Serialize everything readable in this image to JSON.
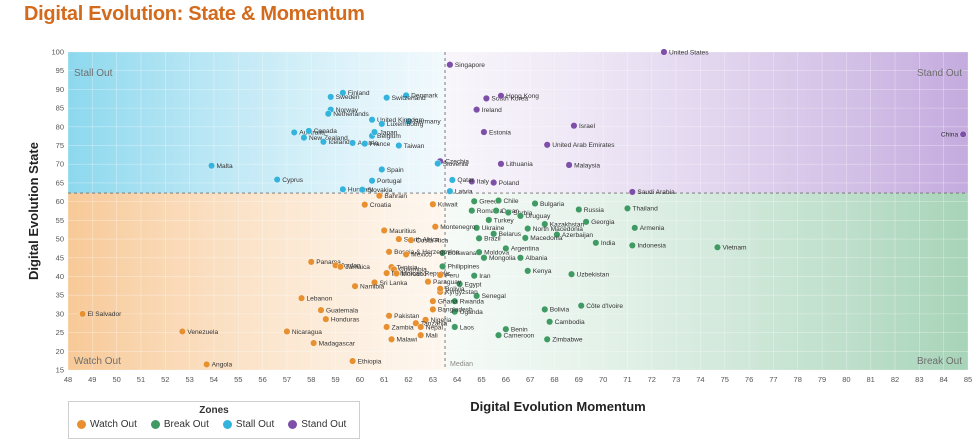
{
  "page_title": "Digital Evolution: State & Momentum",
  "colors": {
    "watch_out": "#e8902f",
    "break_out": "#3f9a63",
    "stall_out": "#34b4dc",
    "stand_out": "#7d4fa8"
  },
  "chart_data": {
    "type": "scatter",
    "title": "Digital Evolution: State & Momentum",
    "xlabel": "Digital Evolution Momentum",
    "ylabel": "Digital Evolution State",
    "xlim": [
      48,
      85
    ],
    "ylim": [
      15,
      100
    ],
    "x_ticks": [
      48,
      49,
      50,
      51,
      52,
      53,
      54,
      55,
      56,
      57,
      58,
      59,
      60,
      61,
      62,
      63,
      64,
      65,
      66,
      67,
      68,
      69,
      70,
      71,
      72,
      73,
      74,
      75,
      76,
      77,
      78,
      79,
      80,
      81,
      82,
      83,
      84,
      85
    ],
    "y_ticks": [
      15,
      20,
      25,
      30,
      35,
      40,
      45,
      50,
      55,
      60,
      65,
      70,
      75,
      80,
      85,
      90,
      95,
      100
    ],
    "x_divider": 63.5,
    "y_divider": 62.3,
    "median_label": "Median",
    "quadrant_labels": {
      "top_left": "Stall Out",
      "top_right": "Stand Out",
      "bottom_left": "Watch Out",
      "bottom_right": "Break Out"
    },
    "legend": {
      "title": "Zones",
      "position": "bottom-left",
      "items": [
        {
          "label": "Watch Out",
          "zone": "watch_out"
        },
        {
          "label": "Break Out",
          "zone": "break_out"
        },
        {
          "label": "Stall Out",
          "zone": "stall_out"
        },
        {
          "label": "Stand Out",
          "zone": "stand_out"
        }
      ]
    },
    "points": [
      {
        "name": "United States",
        "x": 72.5,
        "y": 100.0,
        "zone": "stand_out"
      },
      {
        "name": "Singapore",
        "x": 63.7,
        "y": 96.6,
        "zone": "stand_out"
      },
      {
        "name": "South Korea",
        "x": 65.2,
        "y": 87.6,
        "zone": "stand_out"
      },
      {
        "name": "Hong Kong",
        "x": 65.8,
        "y": 88.3,
        "zone": "stand_out"
      },
      {
        "name": "Ireland",
        "x": 64.8,
        "y": 84.6,
        "zone": "stand_out"
      },
      {
        "name": "Israel",
        "x": 68.8,
        "y": 80.3,
        "zone": "stand_out"
      },
      {
        "name": "Estonia",
        "x": 65.1,
        "y": 78.6,
        "zone": "stand_out"
      },
      {
        "name": "United Arab Emirates",
        "x": 67.7,
        "y": 75.2,
        "zone": "stand_out"
      },
      {
        "name": "China",
        "x": 84.8,
        "y": 78.0,
        "zone": "stand_out"
      },
      {
        "name": "Czechia",
        "x": 63.3,
        "y": 70.8,
        "zone": "stand_out"
      },
      {
        "name": "Lithuania",
        "x": 65.8,
        "y": 70.1,
        "zone": "stand_out"
      },
      {
        "name": "Malaysia",
        "x": 68.6,
        "y": 69.8,
        "zone": "stand_out"
      },
      {
        "name": "Italy",
        "x": 64.6,
        "y": 65.4,
        "zone": "stand_out"
      },
      {
        "name": "Poland",
        "x": 65.5,
        "y": 65.1,
        "zone": "stand_out"
      },
      {
        "name": "Saudi Arabia",
        "x": 71.2,
        "y": 62.6,
        "zone": "stand_out"
      },
      {
        "name": "Finland",
        "x": 59.3,
        "y": 89.1,
        "zone": "stall_out"
      },
      {
        "name": "Sweden",
        "x": 58.8,
        "y": 88.0,
        "zone": "stall_out"
      },
      {
        "name": "Denmark",
        "x": 61.9,
        "y": 88.4,
        "zone": "stall_out"
      },
      {
        "name": "Switzerland",
        "x": 61.1,
        "y": 87.8,
        "zone": "stall_out"
      },
      {
        "name": "Norway",
        "x": 58.8,
        "y": 84.6,
        "zone": "stall_out"
      },
      {
        "name": "Netherlands",
        "x": 58.7,
        "y": 83.5,
        "zone": "stall_out"
      },
      {
        "name": "Germany",
        "x": 62.0,
        "y": 81.5,
        "zone": "stall_out"
      },
      {
        "name": "United Kingdom",
        "x": 60.5,
        "y": 81.9,
        "zone": "stall_out"
      },
      {
        "name": "Luxembourg",
        "x": 60.9,
        "y": 80.8,
        "zone": "stall_out"
      },
      {
        "name": "Australia",
        "x": 57.3,
        "y": 78.5,
        "zone": "stall_out"
      },
      {
        "name": "Canada",
        "x": 57.9,
        "y": 78.9,
        "zone": "stall_out"
      },
      {
        "name": "New Zealand",
        "x": 57.7,
        "y": 77.1,
        "zone": "stall_out"
      },
      {
        "name": "Belgium",
        "x": 60.5,
        "y": 77.6,
        "zone": "stall_out"
      },
      {
        "name": "Japan",
        "x": 60.6,
        "y": 78.6,
        "zone": "stall_out"
      },
      {
        "name": "Iceland",
        "x": 58.5,
        "y": 76.0,
        "zone": "stall_out"
      },
      {
        "name": "Austria",
        "x": 59.7,
        "y": 75.7,
        "zone": "stall_out"
      },
      {
        "name": "France",
        "x": 60.2,
        "y": 75.5,
        "zone": "stall_out"
      },
      {
        "name": "Taiwan",
        "x": 61.6,
        "y": 75.0,
        "zone": "stall_out"
      },
      {
        "name": "Slovenia",
        "x": 63.2,
        "y": 70.2,
        "zone": "stall_out"
      },
      {
        "name": "Malta",
        "x": 53.9,
        "y": 69.6,
        "zone": "stall_out"
      },
      {
        "name": "Spain",
        "x": 60.9,
        "y": 68.6,
        "zone": "stall_out"
      },
      {
        "name": "Cyprus",
        "x": 56.6,
        "y": 65.9,
        "zone": "stall_out"
      },
      {
        "name": "Portugal",
        "x": 60.5,
        "y": 65.6,
        "zone": "stall_out"
      },
      {
        "name": "Hungary",
        "x": 59.3,
        "y": 63.3,
        "zone": "stall_out"
      },
      {
        "name": "Slovakia",
        "x": 60.1,
        "y": 63.2,
        "zone": "stall_out"
      },
      {
        "name": "Qatar",
        "x": 63.8,
        "y": 65.8,
        "zone": "stall_out"
      },
      {
        "name": "Latvia",
        "x": 63.7,
        "y": 62.8,
        "zone": "stall_out"
      },
      {
        "name": "Bulgaria",
        "x": 67.2,
        "y": 59.5,
        "zone": "break_out"
      },
      {
        "name": "Greece",
        "x": 64.7,
        "y": 60.1,
        "zone": "break_out"
      },
      {
        "name": "Chile",
        "x": 65.7,
        "y": 60.3,
        "zone": "break_out"
      },
      {
        "name": "Romania",
        "x": 64.6,
        "y": 57.6,
        "zone": "break_out"
      },
      {
        "name": "Oman",
        "x": 65.6,
        "y": 57.6,
        "zone": "break_out"
      },
      {
        "name": "Serbia",
        "x": 66.1,
        "y": 57.1,
        "zone": "break_out"
      },
      {
        "name": "Russia",
        "x": 69.0,
        "y": 57.9,
        "zone": "break_out"
      },
      {
        "name": "Thailand",
        "x": 71.0,
        "y": 58.2,
        "zone": "break_out"
      },
      {
        "name": "Uruguay",
        "x": 66.6,
        "y": 56.2,
        "zone": "break_out"
      },
      {
        "name": "Turkey",
        "x": 65.3,
        "y": 55.1,
        "zone": "break_out"
      },
      {
        "name": "Georgia",
        "x": 69.3,
        "y": 54.6,
        "zone": "break_out"
      },
      {
        "name": "Kazakhstan",
        "x": 67.6,
        "y": 54.0,
        "zone": "break_out"
      },
      {
        "name": "North Macedonia",
        "x": 66.9,
        "y": 52.8,
        "zone": "break_out"
      },
      {
        "name": "Ukraine",
        "x": 64.8,
        "y": 53.0,
        "zone": "break_out"
      },
      {
        "name": "Armenia",
        "x": 71.3,
        "y": 53.0,
        "zone": "break_out"
      },
      {
        "name": "Azerbaijan",
        "x": 68.1,
        "y": 51.2,
        "zone": "break_out"
      },
      {
        "name": "Belarus",
        "x": 65.5,
        "y": 51.4,
        "zone": "break_out"
      },
      {
        "name": "Macedonia",
        "x": 66.8,
        "y": 50.3,
        "zone": "break_out"
      },
      {
        "name": "Brazil",
        "x": 64.9,
        "y": 50.2,
        "zone": "break_out"
      },
      {
        "name": "India",
        "x": 69.7,
        "y": 49.0,
        "zone": "break_out"
      },
      {
        "name": "Indonesia",
        "x": 71.2,
        "y": 48.3,
        "zone": "break_out"
      },
      {
        "name": "Vietnam",
        "x": 74.7,
        "y": 47.8,
        "zone": "break_out"
      },
      {
        "name": "Botswana",
        "x": 63.4,
        "y": 46.3,
        "zone": "break_out"
      },
      {
        "name": "Moldova",
        "x": 64.9,
        "y": 46.5,
        "zone": "break_out"
      },
      {
        "name": "Argentina",
        "x": 66.0,
        "y": 47.5,
        "zone": "break_out"
      },
      {
        "name": "Mongolia",
        "x": 65.1,
        "y": 45.0,
        "zone": "break_out"
      },
      {
        "name": "Albania",
        "x": 66.6,
        "y": 45.0,
        "zone": "break_out"
      },
      {
        "name": "Philippines",
        "x": 63.4,
        "y": 42.7,
        "zone": "break_out"
      },
      {
        "name": "Kenya",
        "x": 66.9,
        "y": 41.5,
        "zone": "break_out"
      },
      {
        "name": "Iran",
        "x": 64.7,
        "y": 40.2,
        "zone": "break_out"
      },
      {
        "name": "Uzbekistan",
        "x": 68.7,
        "y": 40.6,
        "zone": "break_out"
      },
      {
        "name": "Egypt",
        "x": 64.1,
        "y": 38.0,
        "zone": "break_out"
      },
      {
        "name": "Senegal",
        "x": 64.8,
        "y": 34.8,
        "zone": "break_out"
      },
      {
        "name": "Rwanda",
        "x": 63.9,
        "y": 33.4,
        "zone": "break_out"
      },
      {
        "name": "Uganda",
        "x": 63.9,
        "y": 30.6,
        "zone": "break_out"
      },
      {
        "name": "Côte d'Ivoire",
        "x": 69.1,
        "y": 32.2,
        "zone": "break_out"
      },
      {
        "name": "Bolivia",
        "x": 67.6,
        "y": 31.2,
        "zone": "break_out"
      },
      {
        "name": "Cambodia",
        "x": 67.8,
        "y": 27.9,
        "zone": "break_out"
      },
      {
        "name": "Laos",
        "x": 63.9,
        "y": 26.5,
        "zone": "break_out"
      },
      {
        "name": "Benin",
        "x": 66.0,
        "y": 25.9,
        "zone": "break_out"
      },
      {
        "name": "Cameroon",
        "x": 65.7,
        "y": 24.3,
        "zone": "break_out"
      },
      {
        "name": "Zimbabwe",
        "x": 67.7,
        "y": 23.2,
        "zone": "break_out"
      },
      {
        "name": "Bahrain",
        "x": 60.8,
        "y": 61.6,
        "zone": "watch_out"
      },
      {
        "name": "Croatia",
        "x": 60.2,
        "y": 59.2,
        "zone": "watch_out"
      },
      {
        "name": "Kuwait",
        "x": 63.0,
        "y": 59.3,
        "zone": "watch_out"
      },
      {
        "name": "Montenegro",
        "x": 63.1,
        "y": 53.3,
        "zone": "watch_out"
      },
      {
        "name": "Mauritius",
        "x": 61.0,
        "y": 52.3,
        "zone": "watch_out"
      },
      {
        "name": "South Africa",
        "x": 61.6,
        "y": 50.0,
        "zone": "watch_out"
      },
      {
        "name": "Costa Rica",
        "x": 62.1,
        "y": 49.7,
        "zone": "watch_out"
      },
      {
        "name": "Bosnia & Herzegovina",
        "x": 61.2,
        "y": 46.6,
        "zone": "watch_out"
      },
      {
        "name": "Mexico",
        "x": 61.9,
        "y": 45.9,
        "zone": "watch_out"
      },
      {
        "name": "Panama",
        "x": 58.0,
        "y": 43.9,
        "zone": "watch_out"
      },
      {
        "name": "Jordan",
        "x": 59.0,
        "y": 43.0,
        "zone": "watch_out"
      },
      {
        "name": "Jamaica",
        "x": 59.2,
        "y": 42.6,
        "zone": "watch_out"
      },
      {
        "name": "Tunisia",
        "x": 61.3,
        "y": 42.5,
        "zone": "watch_out"
      },
      {
        "name": "Colombia",
        "x": 61.4,
        "y": 41.9,
        "zone": "watch_out"
      },
      {
        "name": "Dominican Republic",
        "x": 61.1,
        "y": 40.9,
        "zone": "watch_out"
      },
      {
        "name": "Morocco",
        "x": 61.5,
        "y": 40.8,
        "zone": "watch_out"
      },
      {
        "name": "Peru",
        "x": 63.3,
        "y": 40.4,
        "zone": "watch_out"
      },
      {
        "name": "Paraguay",
        "x": 62.8,
        "y": 38.6,
        "zone": "watch_out"
      },
      {
        "name": "Sri Lanka",
        "x": 60.6,
        "y": 38.4,
        "zone": "watch_out"
      },
      {
        "name": "Namibia",
        "x": 59.8,
        "y": 37.4,
        "zone": "watch_out"
      },
      {
        "name": "Kyrgyzstan",
        "x": 63.3,
        "y": 35.9,
        "zone": "watch_out"
      },
      {
        "name": "Bolivia",
        "x": 63.3,
        "y": 36.7,
        "zone": "watch_out"
      },
      {
        "name": "Lebanon",
        "x": 57.6,
        "y": 34.2,
        "zone": "watch_out"
      },
      {
        "name": "Ghana",
        "x": 63.0,
        "y": 33.4,
        "zone": "watch_out"
      },
      {
        "name": "Guatemala",
        "x": 58.4,
        "y": 31.0,
        "zone": "watch_out"
      },
      {
        "name": "Bangladesh",
        "x": 63.0,
        "y": 31.2,
        "zone": "watch_out"
      },
      {
        "name": "Pakistan",
        "x": 61.2,
        "y": 29.5,
        "zone": "watch_out"
      },
      {
        "name": "Honduras",
        "x": 58.6,
        "y": 28.6,
        "zone": "watch_out"
      },
      {
        "name": "Nigeria",
        "x": 62.7,
        "y": 28.4,
        "zone": "watch_out"
      },
      {
        "name": "Tanzania",
        "x": 62.3,
        "y": 27.5,
        "zone": "watch_out"
      },
      {
        "name": "Zambia",
        "x": 61.1,
        "y": 26.5,
        "zone": "watch_out"
      },
      {
        "name": "Nepal",
        "x": 62.5,
        "y": 26.5,
        "zone": "watch_out"
      },
      {
        "name": "El Salvador",
        "x": 48.6,
        "y": 30.0,
        "zone": "watch_out"
      },
      {
        "name": "Venezuela",
        "x": 52.7,
        "y": 25.3,
        "zone": "watch_out"
      },
      {
        "name": "Nicaragua",
        "x": 57.0,
        "y": 25.3,
        "zone": "watch_out"
      },
      {
        "name": "Madagascar",
        "x": 58.1,
        "y": 22.2,
        "zone": "watch_out"
      },
      {
        "name": "Malawi",
        "x": 61.3,
        "y": 23.2,
        "zone": "watch_out"
      },
      {
        "name": "Mali",
        "x": 62.5,
        "y": 24.3,
        "zone": "watch_out"
      },
      {
        "name": "Ethiopia",
        "x": 59.7,
        "y": 17.4,
        "zone": "watch_out"
      },
      {
        "name": "Angola",
        "x": 53.7,
        "y": 16.5,
        "zone": "watch_out"
      }
    ]
  }
}
